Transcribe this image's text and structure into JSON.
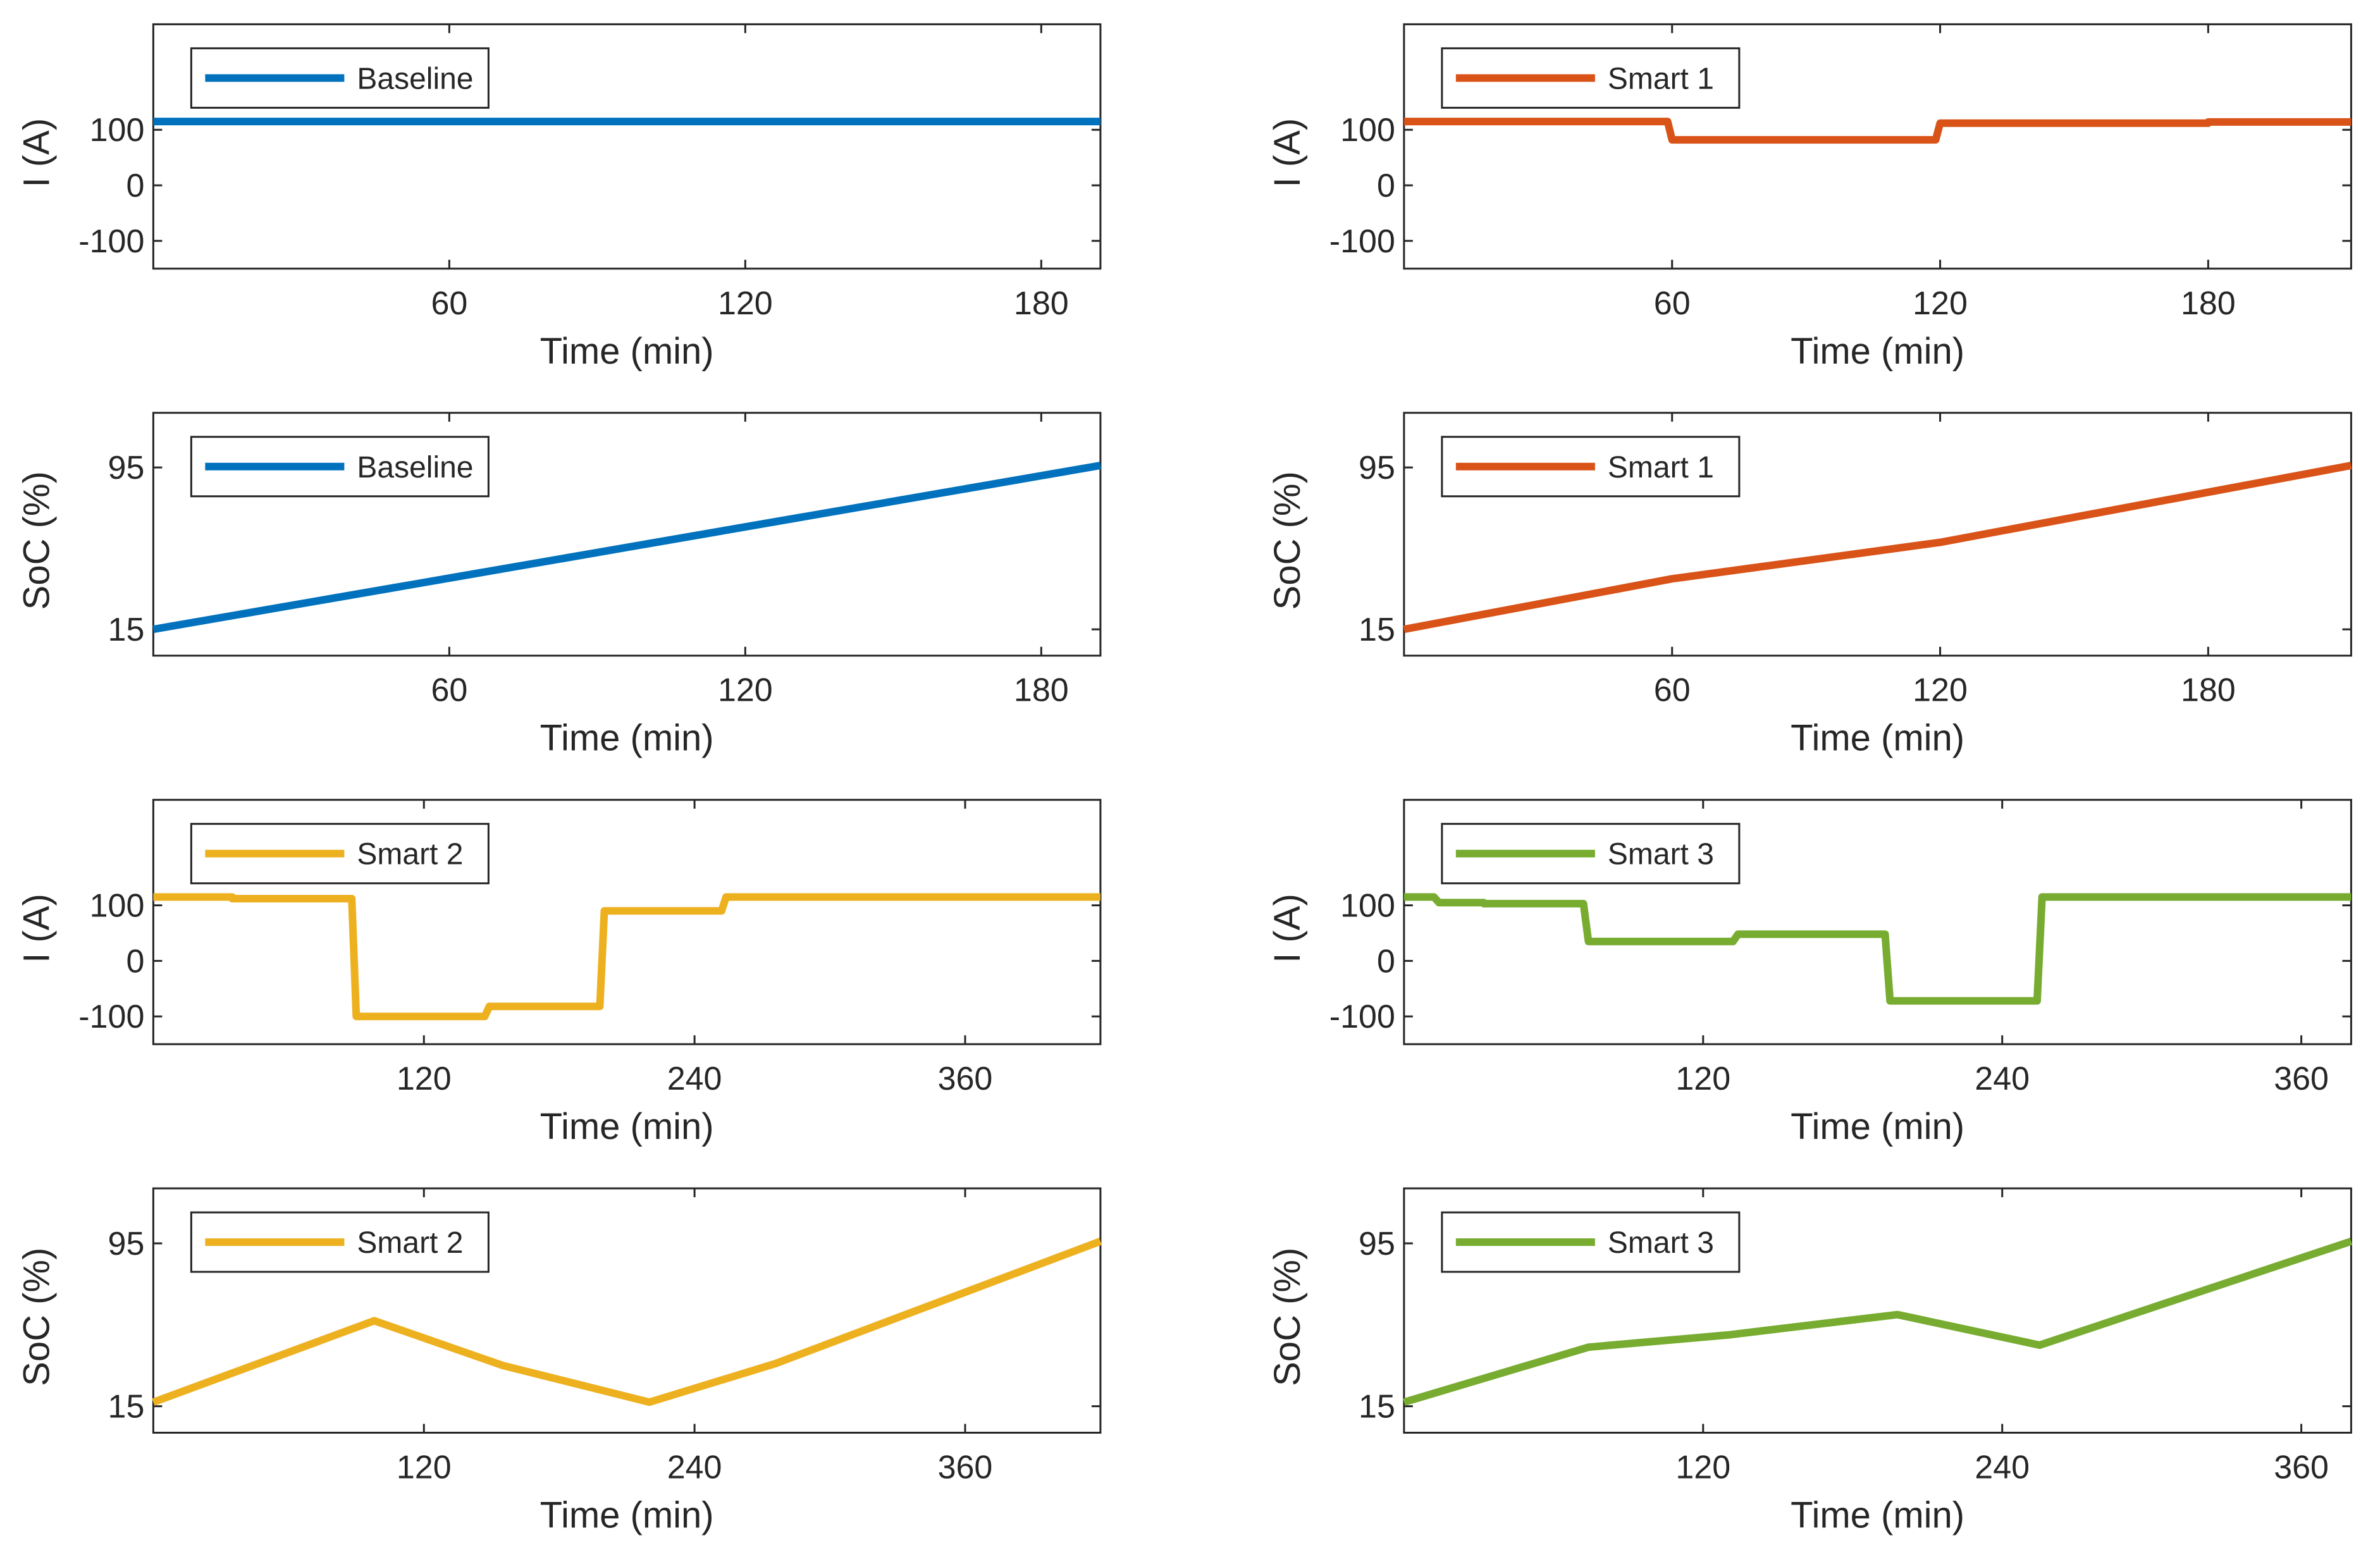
{
  "figure": {
    "description_colors": {
      "baseline": "#0072BD",
      "smart1": "#D95319",
      "smart2": "#EDB120",
      "smart3": "#77AC30"
    }
  },
  "chart_data": [
    {
      "id": "baseline-current",
      "type": "line",
      "legend": "Baseline",
      "color": "#0072BD",
      "xlabel": "Time (min)",
      "ylabel": "I (A)",
      "xlim": [
        0,
        192
      ],
      "ylim": [
        -150,
        290
      ],
      "xticks": [
        60,
        120,
        180
      ],
      "yticks": [
        -100,
        0,
        100
      ],
      "x": [
        0,
        192
      ],
      "y": [
        115,
        115
      ]
    },
    {
      "id": "smart1-current",
      "type": "line",
      "legend": "Smart 1",
      "color": "#D95319",
      "xlabel": "Time (min)",
      "ylabel": "I (A)",
      "xlim": [
        0,
        212
      ],
      "ylim": [
        -150,
        290
      ],
      "xticks": [
        60,
        120,
        180
      ],
      "yticks": [
        -100,
        0,
        100
      ],
      "x": [
        0,
        59,
        60,
        119,
        120,
        180,
        180,
        212
      ],
      "y": [
        115,
        115,
        82,
        82,
        112,
        112,
        114,
        114
      ]
    },
    {
      "id": "baseline-soc",
      "type": "line",
      "legend": "Baseline",
      "color": "#0072BD",
      "xlabel": "Time (min)",
      "ylabel": "SoC (%)",
      "xlim": [
        0,
        192
      ],
      "ylim": [
        2,
        122
      ],
      "xticks": [
        60,
        120,
        180
      ],
      "yticks": [
        15,
        95
      ],
      "x": [
        0,
        192
      ],
      "y": [
        15,
        96
      ]
    },
    {
      "id": "smart1-soc",
      "type": "line",
      "legend": "Smart 1",
      "color": "#D95319",
      "xlabel": "Time (min)",
      "ylabel": "SoC (%)",
      "xlim": [
        0,
        212
      ],
      "ylim": [
        2,
        122
      ],
      "xticks": [
        60,
        120,
        180
      ],
      "yticks": [
        15,
        95
      ],
      "x": [
        0,
        60,
        120,
        212
      ],
      "y": [
        15,
        40,
        58,
        96
      ]
    },
    {
      "id": "smart2-current",
      "type": "line",
      "legend": "Smart 2",
      "color": "#EDB120",
      "xlabel": "Time (min)",
      "ylabel": "I (A)",
      "xlim": [
        0,
        420
      ],
      "ylim": [
        -150,
        290
      ],
      "xticks": [
        120,
        240,
        360
      ],
      "yticks": [
        -100,
        0,
        100
      ],
      "x": [
        0,
        35,
        35,
        88,
        90,
        147,
        149,
        198,
        200,
        252,
        254,
        420
      ],
      "y": [
        115,
        115,
        112,
        112,
        -100,
        -100,
        -82,
        -82,
        90,
        90,
        115,
        115
      ]
    },
    {
      "id": "smart3-current",
      "type": "line",
      "legend": "Smart 3",
      "color": "#77AC30",
      "xlabel": "Time (min)",
      "ylabel": "I (A)",
      "xlim": [
        0,
        380
      ],
      "ylim": [
        -150,
        290
      ],
      "xticks": [
        120,
        240,
        360
      ],
      "yticks": [
        -100,
        0,
        100
      ],
      "x": [
        0,
        12,
        14,
        32,
        32,
        72,
        74,
        132,
        134,
        193,
        195,
        254,
        256,
        380
      ],
      "y": [
        115,
        115,
        105,
        105,
        103,
        103,
        35,
        35,
        48,
        48,
        -72,
        -72,
        115,
        115
      ]
    },
    {
      "id": "smart2-soc",
      "type": "line",
      "legend": "Smart 2",
      "color": "#EDB120",
      "xlabel": "Time (min)",
      "ylabel": "SoC (%)",
      "xlim": [
        0,
        420
      ],
      "ylim": [
        2,
        122
      ],
      "xticks": [
        120,
        240,
        360
      ],
      "yticks": [
        15,
        95
      ],
      "x": [
        0,
        98,
        155,
        220,
        276,
        420
      ],
      "y": [
        17,
        57,
        35,
        17,
        36,
        96
      ]
    },
    {
      "id": "smart3-soc",
      "type": "line",
      "legend": "Smart 3",
      "color": "#77AC30",
      "xlabel": "Time (min)",
      "ylabel": "SoC (%)",
      "xlim": [
        0,
        380
      ],
      "ylim": [
        2,
        122
      ],
      "xticks": [
        120,
        240,
        360
      ],
      "yticks": [
        15,
        95
      ],
      "x": [
        0,
        74,
        130,
        198,
        255,
        380
      ],
      "y": [
        17,
        44,
        50,
        60,
        45,
        96
      ]
    }
  ]
}
